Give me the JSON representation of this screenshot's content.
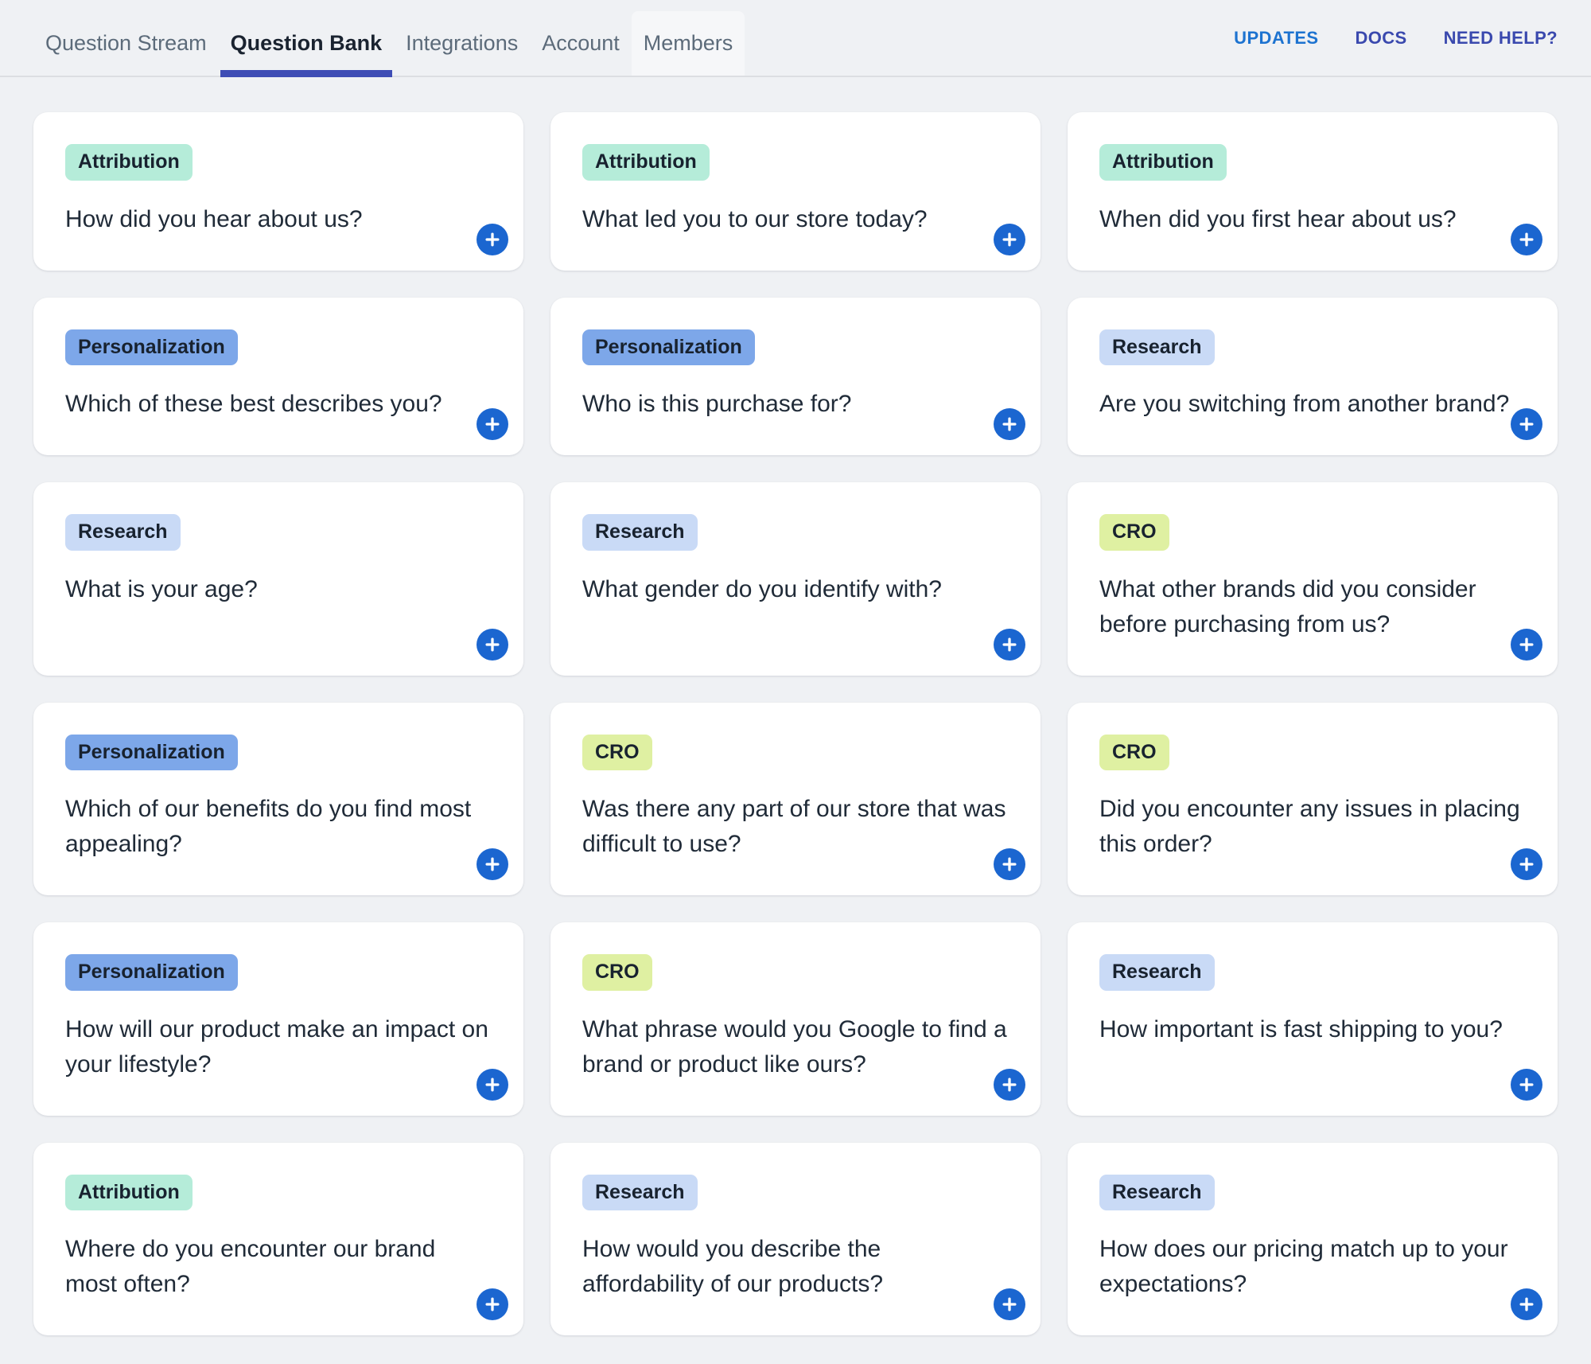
{
  "nav": {
    "tabs": [
      {
        "label": "Question Stream",
        "active": false,
        "highlighted": false
      },
      {
        "label": "Question Bank",
        "active": true,
        "highlighted": false
      },
      {
        "label": "Integrations",
        "active": false,
        "highlighted": false
      },
      {
        "label": "Account",
        "active": false,
        "highlighted": false
      },
      {
        "label": "Members",
        "active": false,
        "highlighted": true
      }
    ],
    "active_underline_color": "#3e4db5",
    "links": [
      {
        "label": "UPDATES",
        "color": "#1d73d0"
      },
      {
        "label": "DOCS",
        "color": "#3a49ae"
      },
      {
        "label": "NEED HELP?",
        "color": "#3a49ae"
      }
    ]
  },
  "categories": {
    "Attribution": {
      "bg": "#b5ecd9"
    },
    "Personalization": {
      "bg": "#7da7e9"
    },
    "Research": {
      "bg": "#c9daf6"
    },
    "CRO": {
      "bg": "#dff0a2"
    }
  },
  "add_button": {
    "color": "#1b66d0",
    "icon": "plus-icon"
  },
  "cards": [
    {
      "category": "Attribution",
      "question": "How did you hear about us?"
    },
    {
      "category": "Attribution",
      "question": "What led you to our store today?"
    },
    {
      "category": "Attribution",
      "question": "When did you first hear about us?"
    },
    {
      "category": "Personalization",
      "question": "Which of these best describes you?"
    },
    {
      "category": "Personalization",
      "question": "Who is this purchase for?"
    },
    {
      "category": "Research",
      "question": "Are you switching from another brand?"
    },
    {
      "category": "Research",
      "question": "What is your age?"
    },
    {
      "category": "Research",
      "question": "What gender do you identify with?"
    },
    {
      "category": "CRO",
      "question": "What other brands did you consider before purchasing from us?"
    },
    {
      "category": "Personalization",
      "question": "Which of our benefits do you find most appealing?"
    },
    {
      "category": "CRO",
      "question": "Was there any part of our store that was difficult to use?"
    },
    {
      "category": "CRO",
      "question": "Did you encounter any issues in placing this order?"
    },
    {
      "category": "Personalization",
      "question": "How will our product make an impact on your lifestyle?"
    },
    {
      "category": "CRO",
      "question": "What phrase would you Google to find a brand or product like ours?"
    },
    {
      "category": "Research",
      "question": "How important is fast shipping to you?"
    },
    {
      "category": "Attribution",
      "question": "Where do you encounter our brand most often?"
    },
    {
      "category": "Research",
      "question": "How would you describe the affordability of our products?"
    },
    {
      "category": "Research",
      "question": "How does our pricing match up to your expectations?"
    }
  ]
}
